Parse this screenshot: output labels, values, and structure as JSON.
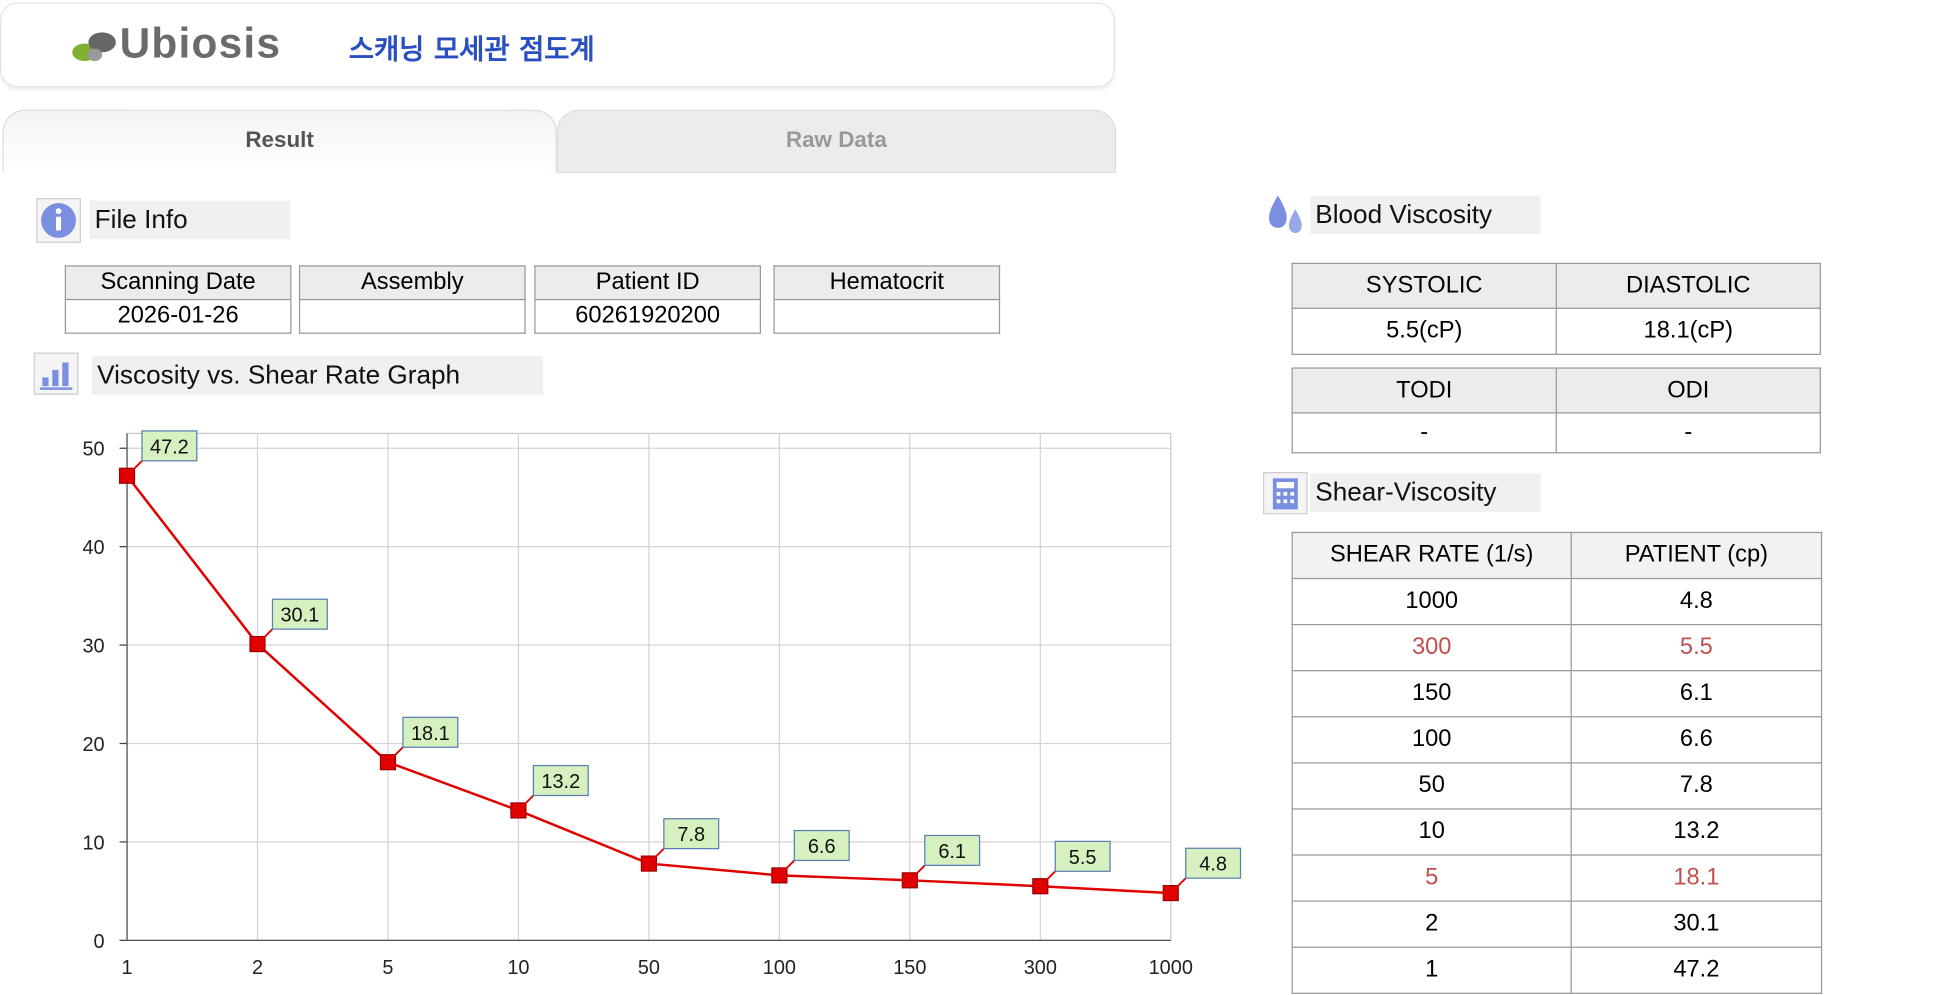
{
  "header": {
    "brand": "Ubiosis",
    "title": "스캐닝 모세관 점도계"
  },
  "tabs": [
    "Result",
    "Raw Data"
  ],
  "file_info": {
    "title": "File Info",
    "columns": [
      "Scanning Date",
      "Assembly",
      "Patient ID",
      "Hematocrit"
    ],
    "values": [
      "2026-01-26",
      null,
      "60261920200",
      null
    ]
  },
  "graph_title": "Viscosity vs. Shear Rate Graph",
  "chart_data": {
    "type": "line",
    "categories": [
      "1",
      "2",
      "5",
      "10",
      "50",
      "100",
      "150",
      "300",
      "1000"
    ],
    "values": [
      47.2,
      30.1,
      18.1,
      13.2,
      7.8,
      6.6,
      6.1,
      5.5,
      4.8
    ],
    "color": "#e00000",
    "ylim": [
      0,
      51.5
    ],
    "yticks": [
      0,
      10,
      20,
      30,
      40,
      50
    ],
    "grid": true,
    "data_labels": true
  },
  "blood_viscosity": {
    "title": "Blood Viscosity",
    "table1": {
      "columns": [
        "SYSTOLIC",
        "DIASTOLIC"
      ],
      "values": [
        "5.5(cP)",
        "18.1(cP)"
      ]
    },
    "table2": {
      "columns": [
        "TODI",
        "ODI"
      ],
      "values": [
        "-",
        "-"
      ]
    }
  },
  "shear_viscosity": {
    "title": "Shear-Viscosity",
    "columns": [
      "SHEAR RATE (1/s)",
      "PATIENT (cp)"
    ],
    "rows": [
      [
        1000,
        4.8
      ],
      [
        300,
        5.5
      ],
      [
        150,
        6.1
      ],
      [
        100,
        6.6
      ],
      [
        50,
        7.8
      ],
      [
        10,
        13.2
      ],
      [
        5,
        18.1
      ],
      [
        2,
        30.1
      ],
      [
        1,
        47.2
      ]
    ],
    "highlight_rows": [
      1,
      6
    ],
    "highlight_color": "#c0504d"
  }
}
